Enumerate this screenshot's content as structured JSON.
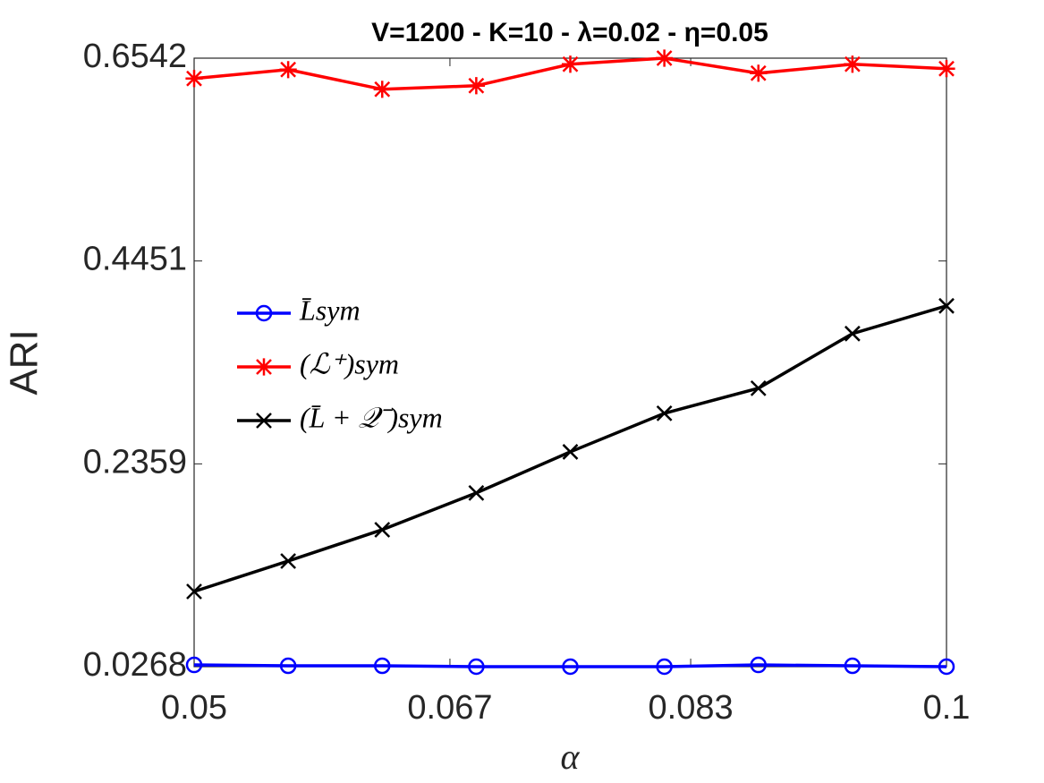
{
  "chart_data": {
    "type": "line",
    "title": "V=1200 - K=10 - λ=0.02 - η=0.05",
    "xlabel": "α",
    "ylabel": "ARI",
    "x": [
      0.05,
      0.05625,
      0.0625,
      0.06875,
      0.075,
      0.08125,
      0.0875,
      0.09375,
      0.1
    ],
    "series": [
      {
        "name": "L̄sym",
        "color": "#0000ff",
        "marker": "circle",
        "values": [
          0.0286,
          0.0277,
          0.0277,
          0.0268,
          0.0268,
          0.0268,
          0.0286,
          0.0277,
          0.0268
        ]
      },
      {
        "name": "(ℒ⁺)sym",
        "color": "#ff0000",
        "marker": "asterisk",
        "values": [
          0.6332,
          0.6424,
          0.6221,
          0.6258,
          0.648,
          0.6542,
          0.6387,
          0.648,
          0.6434
        ]
      },
      {
        "name": "(L̄ + 𝒬⁻)sym",
        "color": "#000000",
        "marker": "x",
        "values": [
          0.1043,
          0.1357,
          0.168,
          0.2059,
          0.2483,
          0.288,
          0.3139,
          0.3702,
          0.3988
        ]
      }
    ],
    "xlim": [
      0.05,
      0.1
    ],
    "xticks": [
      0.05,
      0.067,
      0.083,
      0.1
    ],
    "ylim": [
      0.0268,
      0.6542
    ],
    "yticks": [
      0.0268,
      0.2359,
      0.4451,
      0.6542
    ],
    "grid": false,
    "legend": "west"
  }
}
